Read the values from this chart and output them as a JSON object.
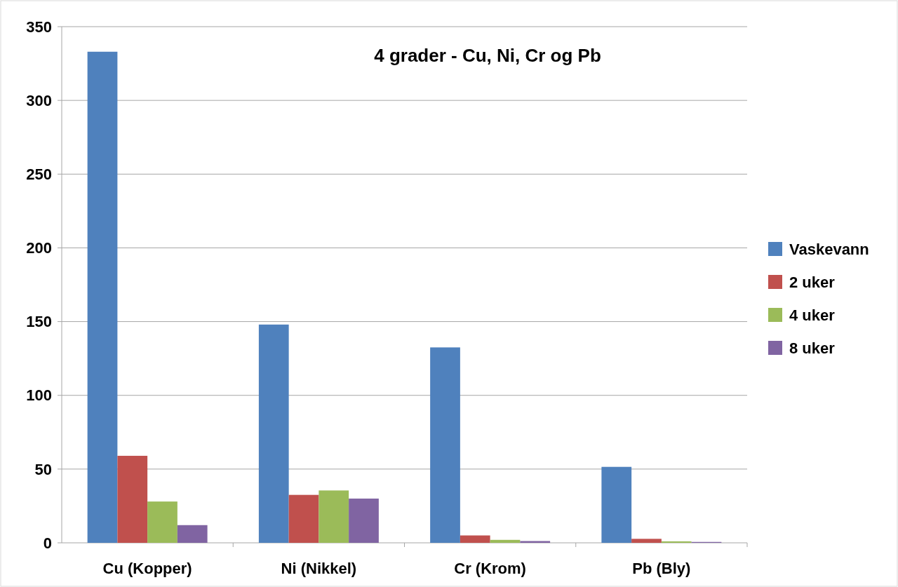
{
  "chart_data": {
    "type": "bar",
    "title": "4 grader - Cu, Ni, Cr og Pb",
    "categories": [
      "Cu (Kopper)",
      "Ni (Nikkel)",
      "Cr (Krom)",
      "Pb (Bly)"
    ],
    "series": [
      {
        "name": "Vaskevann",
        "color": "#4f81bd",
        "values": [
          333,
          148,
          132.5,
          51.5
        ]
      },
      {
        "name": "2 uker",
        "color": "#c0504d",
        "values": [
          59,
          32.5,
          5,
          2.7
        ]
      },
      {
        "name": "4 uker",
        "color": "#9bbb59",
        "values": [
          28,
          35.5,
          2,
          1
        ]
      },
      {
        "name": "8 uker",
        "color": "#8064a2",
        "values": [
          12,
          30,
          1.2,
          0.6
        ]
      }
    ],
    "ylim": [
      0,
      350
    ],
    "yticks": [
      0,
      50,
      100,
      150,
      200,
      250,
      300,
      350
    ],
    "grid": "y",
    "legend": "right"
  }
}
